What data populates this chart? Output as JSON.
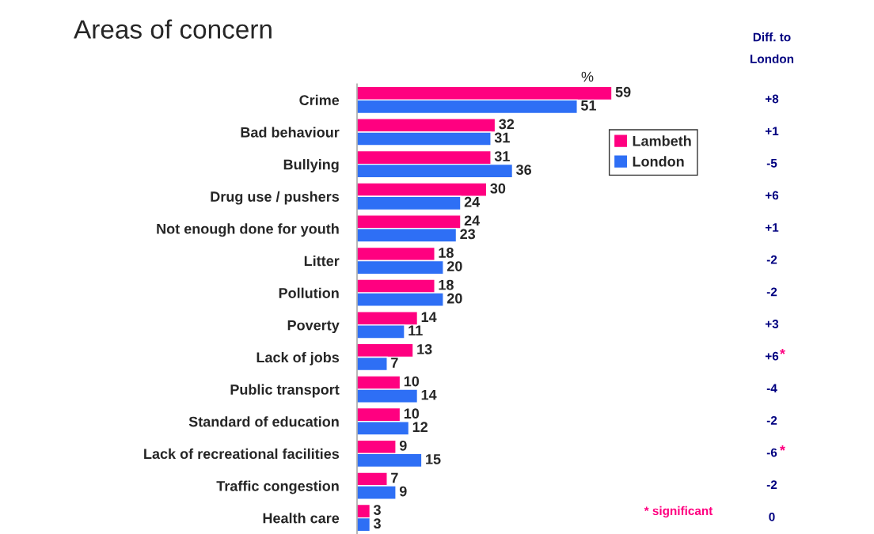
{
  "chart_data": {
    "type": "bar",
    "orientation": "horizontal",
    "title": "Areas of concern",
    "xlabel": "%",
    "categories": [
      "Crime",
      "Bad behaviour",
      "Bullying",
      "Drug use / pushers",
      "Not enough done for youth",
      "Litter",
      "Pollution",
      "Poverty",
      "Lack of jobs",
      "Public transport",
      "Standard of education",
      "Lack of recreational facilities",
      "Traffic congestion",
      "Health care"
    ],
    "series": [
      {
        "name": "Lambeth",
        "color": "#ff0080",
        "values": [
          59,
          32,
          31,
          30,
          24,
          18,
          18,
          14,
          13,
          10,
          10,
          9,
          7,
          3
        ]
      },
      {
        "name": "London",
        "color": "#2e6ff5",
        "values": [
          51,
          31,
          36,
          24,
          23,
          20,
          20,
          11,
          7,
          14,
          12,
          15,
          9,
          3
        ]
      }
    ],
    "y2_categories": [
      "+8",
      "+1",
      "-5",
      "+6",
      "+1",
      "-2",
      "-2",
      "+3",
      "+6*",
      "-4",
      "-2",
      "-6*",
      "-2",
      "0"
    ],
    "annotations": [
      "Diff. to\nLondon",
      "* significant"
    ],
    "tick_labels": "y",
    "data_labels": true,
    "legend": "top right",
    "grid": false
  }
}
